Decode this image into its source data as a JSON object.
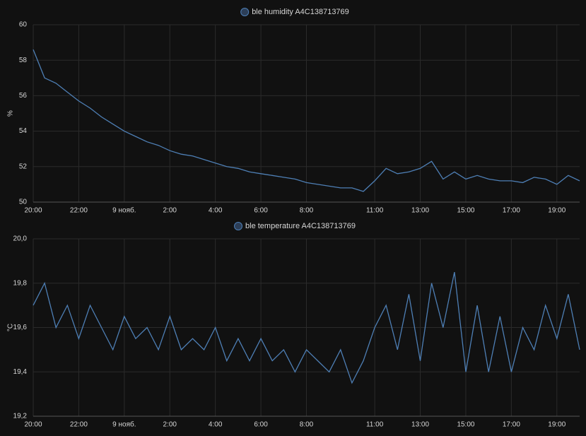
{
  "chart_data": [
    {
      "type": "line",
      "y_label": "%",
      "x": [
        0,
        0.5,
        1,
        1.5,
        2,
        2.5,
        3,
        3.5,
        4,
        4.5,
        5,
        5.5,
        6,
        6.5,
        7,
        7.5,
        8,
        8.5,
        9,
        9.5,
        10,
        10.5,
        11,
        11.5,
        12,
        12.5,
        13,
        13.5,
        14,
        14.5,
        15,
        15.5,
        16,
        16.5,
        17,
        17.5,
        18,
        18.5,
        19,
        19.5,
        20,
        20.5,
        21,
        21.5,
        22,
        22.5,
        23,
        23.5,
        24
      ],
      "series": [
        {
          "name": "ble humidity A4C138713769",
          "color": "#4e7fb5",
          "values": [
            58.6,
            57.0,
            56.7,
            56.2,
            55.7,
            55.3,
            54.8,
            54.4,
            54.0,
            53.7,
            53.4,
            53.2,
            52.9,
            52.7,
            52.6,
            52.4,
            52.2,
            52.0,
            51.9,
            51.7,
            51.6,
            51.5,
            51.4,
            51.3,
            51.1,
            51.0,
            50.9,
            50.8,
            50.8,
            50.6,
            51.2,
            51.9,
            51.6,
            51.7,
            51.9,
            52.3,
            51.3,
            51.7,
            51.3,
            51.5,
            51.3,
            51.2,
            51.2,
            51.1,
            51.4,
            51.3,
            51.0,
            51.5,
            51.2
          ]
        }
      ],
      "xlim": [
        0,
        24
      ],
      "xticks": [
        {
          "value": 0,
          "label": "20:00"
        },
        {
          "value": 2,
          "label": "22:00"
        },
        {
          "value": 4,
          "label": "9 нояб."
        },
        {
          "value": 6,
          "label": "2:00"
        },
        {
          "value": 8,
          "label": "4:00"
        },
        {
          "value": 10,
          "label": "6:00"
        },
        {
          "value": 12,
          "label": "8:00"
        },
        {
          "value": 15,
          "label": "11:00"
        },
        {
          "value": 17,
          "label": "13:00"
        },
        {
          "value": 19,
          "label": "15:00"
        },
        {
          "value": 21,
          "label": "17:00"
        },
        {
          "value": 23,
          "label": "19:00"
        }
      ],
      "ylim": [
        50,
        60
      ],
      "yticks": [
        50,
        52,
        54,
        56,
        58,
        60
      ],
      "grid": true
    },
    {
      "type": "line",
      "y_label": "°C",
      "x": [
        0,
        0.5,
        1,
        1.5,
        2,
        2.5,
        3,
        3.5,
        4,
        4.5,
        5,
        5.5,
        6,
        6.5,
        7,
        7.5,
        8,
        8.5,
        9,
        9.5,
        10,
        10.5,
        11,
        11.5,
        12,
        12.5,
        13,
        13.5,
        14,
        14.5,
        15,
        15.5,
        16,
        16.5,
        17,
        17.5,
        18,
        18.5,
        19,
        19.5,
        20,
        20.5,
        21,
        21.5,
        22,
        22.5,
        23,
        23.5,
        24
      ],
      "series": [
        {
          "name": "ble temperature A4C138713769",
          "color": "#4e7fb5",
          "values": [
            19.7,
            19.8,
            19.6,
            19.7,
            19.55,
            19.7,
            19.6,
            19.5,
            19.65,
            19.55,
            19.6,
            19.5,
            19.65,
            19.5,
            19.55,
            19.5,
            19.6,
            19.45,
            19.55,
            19.45,
            19.55,
            19.45,
            19.5,
            19.4,
            19.5,
            19.45,
            19.4,
            19.5,
            19.35,
            19.45,
            19.6,
            19.7,
            19.5,
            19.75,
            19.45,
            19.8,
            19.6,
            19.85,
            19.4,
            19.7,
            19.4,
            19.65,
            19.4,
            19.6,
            19.5,
            19.7,
            19.55,
            19.75,
            19.5
          ]
        }
      ],
      "xlim": [
        0,
        24
      ],
      "xticks": [
        {
          "value": 0,
          "label": "20:00"
        },
        {
          "value": 2,
          "label": "22:00"
        },
        {
          "value": 4,
          "label": "9 нояб."
        },
        {
          "value": 6,
          "label": "2:00"
        },
        {
          "value": 8,
          "label": "4:00"
        },
        {
          "value": 10,
          "label": "6:00"
        },
        {
          "value": 12,
          "label": "8:00"
        },
        {
          "value": 15,
          "label": "11:00"
        },
        {
          "value": 17,
          "label": "13:00"
        },
        {
          "value": 19,
          "label": "15:00"
        },
        {
          "value": 21,
          "label": "17:00"
        },
        {
          "value": 23,
          "label": "19:00"
        }
      ],
      "ylim": [
        19.2,
        20.0
      ],
      "yticks": [
        {
          "value": 19.2,
          "label": "19,2"
        },
        {
          "value": 19.4,
          "label": "19,4"
        },
        {
          "value": 19.6,
          "label": "19,6"
        },
        {
          "value": 19.8,
          "label": "19,8"
        },
        {
          "value": 20.0,
          "label": "20,0"
        }
      ],
      "grid": true
    }
  ]
}
